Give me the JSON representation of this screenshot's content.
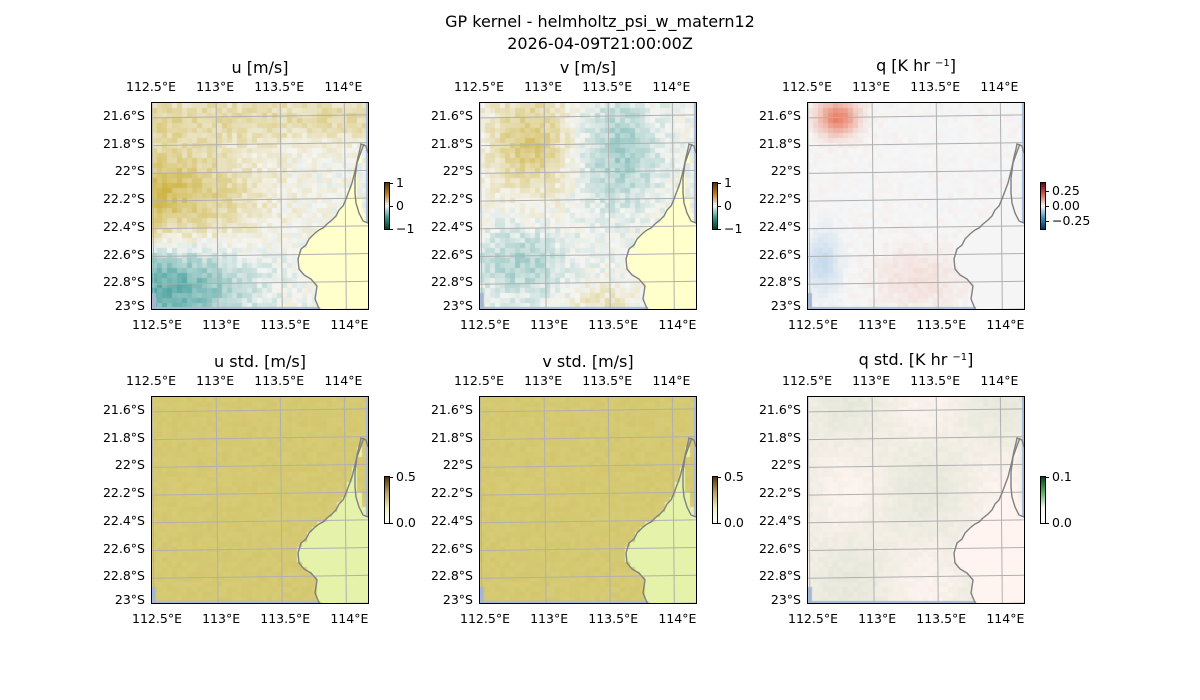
{
  "title": "GP kernel - helmholtz_psi_w_matern12",
  "subtitle": "2026-04-09T21:00:00Z",
  "lon_ticks": [
    "112.5°E",
    "113°E",
    "113.5°E",
    "114°E"
  ],
  "lat_ticks": [
    "21.6°S",
    "21.8°S",
    "22°S",
    "22.2°S",
    "22.4°S",
    "22.6°S",
    "22.8°S",
    "23°S"
  ],
  "extent": {
    "lon": [
      112.5,
      114.2
    ],
    "lat": [
      -23.0,
      -21.5
    ]
  },
  "colors": {
    "land": "#ffffcc",
    "ocean_edge": "#a5b9dd",
    "coast": "#808080",
    "grid": "#b0b0b0"
  },
  "panels": [
    {
      "id": "u",
      "title": "u [m/s]",
      "cmap": "brbg",
      "cbar_ticks": [
        "1",
        "0",
        "−1"
      ]
    },
    {
      "id": "v",
      "title": "v [m/s]",
      "cmap": "brbg",
      "cbar_ticks": [
        "1",
        "0",
        "−1"
      ]
    },
    {
      "id": "q",
      "title_main": "q [K hr ",
      "title_exp": "−1",
      "title_end": "]",
      "cmap": "rdbu",
      "cbar_ticks": [
        "0.25",
        "0.00",
        "−0.25"
      ]
    },
    {
      "id": "ustd",
      "title": "u std. [m/s]",
      "cmap": "std",
      "cbar_ticks": [
        "0.5",
        "0.0"
      ]
    },
    {
      "id": "vstd",
      "title": "v std. [m/s]",
      "cmap": "std",
      "cbar_ticks": [
        "0.5",
        "0.0"
      ]
    },
    {
      "id": "qstd",
      "title_main": "q std. [K hr ",
      "title_exp": "−1",
      "title_end": "]",
      "cmap": "qstd",
      "cbar_ticks": [
        "0.1",
        "0.0"
      ]
    }
  ]
}
